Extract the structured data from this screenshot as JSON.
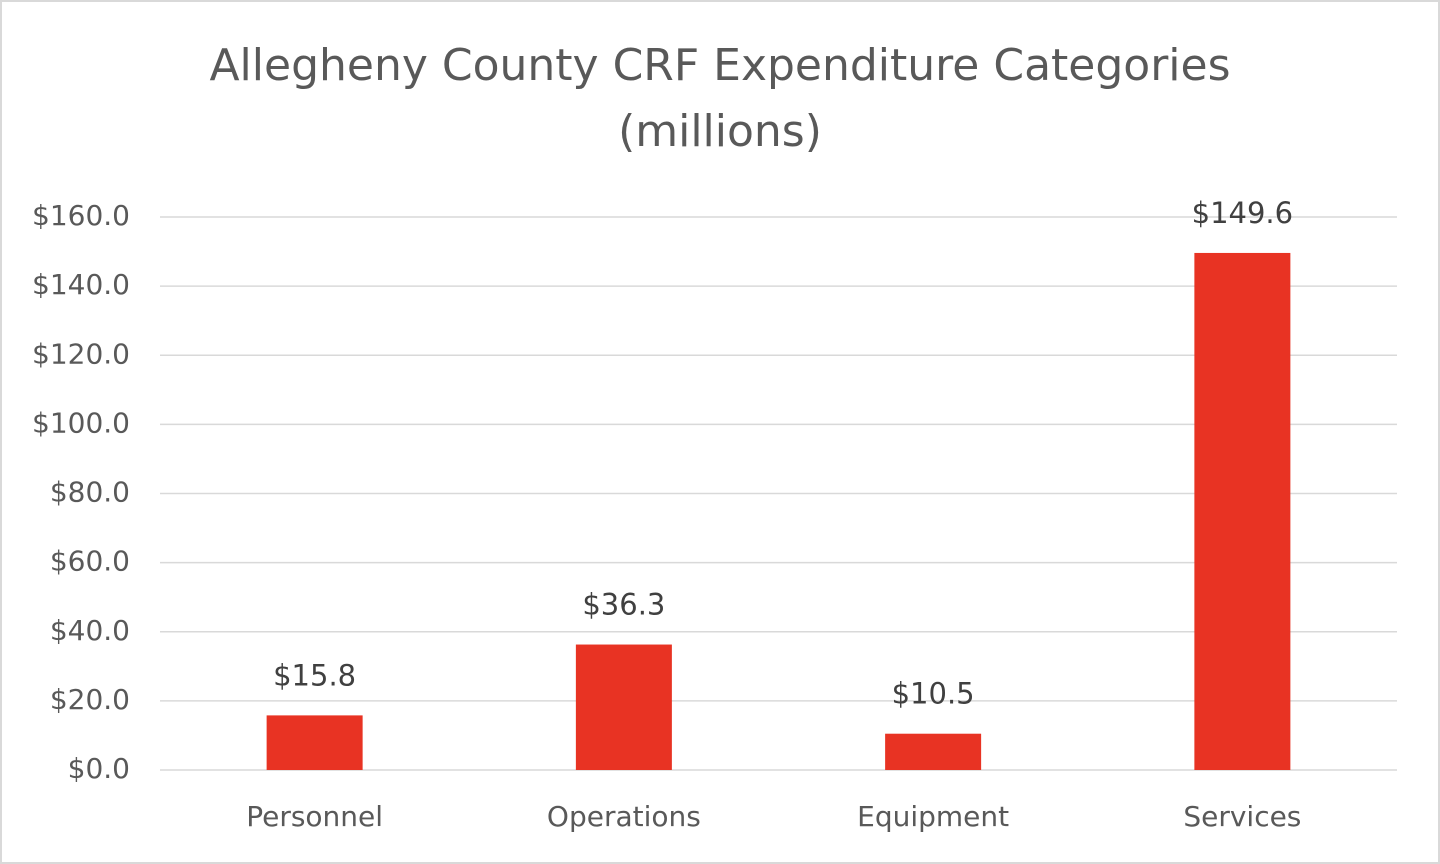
{
  "chart_data": {
    "type": "bar",
    "title": [
      "Allegheny County CRF Expenditure Categories",
      "(millions)"
    ],
    "categories": [
      "Personnel",
      "Operations",
      "Equipment",
      "Services"
    ],
    "values": [
      15.8,
      36.3,
      10.5,
      149.6
    ],
    "value_labels": [
      "$15.8",
      "$36.3",
      "$10.5",
      "$149.6"
    ],
    "color": "#e83323",
    "ylim": [
      0,
      160
    ],
    "yticks": [
      {
        "value": 0,
        "label": "$0.0"
      },
      {
        "value": 20,
        "label": "$20.0"
      },
      {
        "value": 40,
        "label": "$40.0"
      },
      {
        "value": 60,
        "label": "$60.0"
      },
      {
        "value": 80,
        "label": "$80.0"
      },
      {
        "value": 100,
        "label": "$100.0"
      },
      {
        "value": 120,
        "label": "$120.0"
      },
      {
        "value": 140,
        "label": "$140.0"
      },
      {
        "value": 160,
        "label": "$160.0"
      }
    ],
    "grid": true
  }
}
